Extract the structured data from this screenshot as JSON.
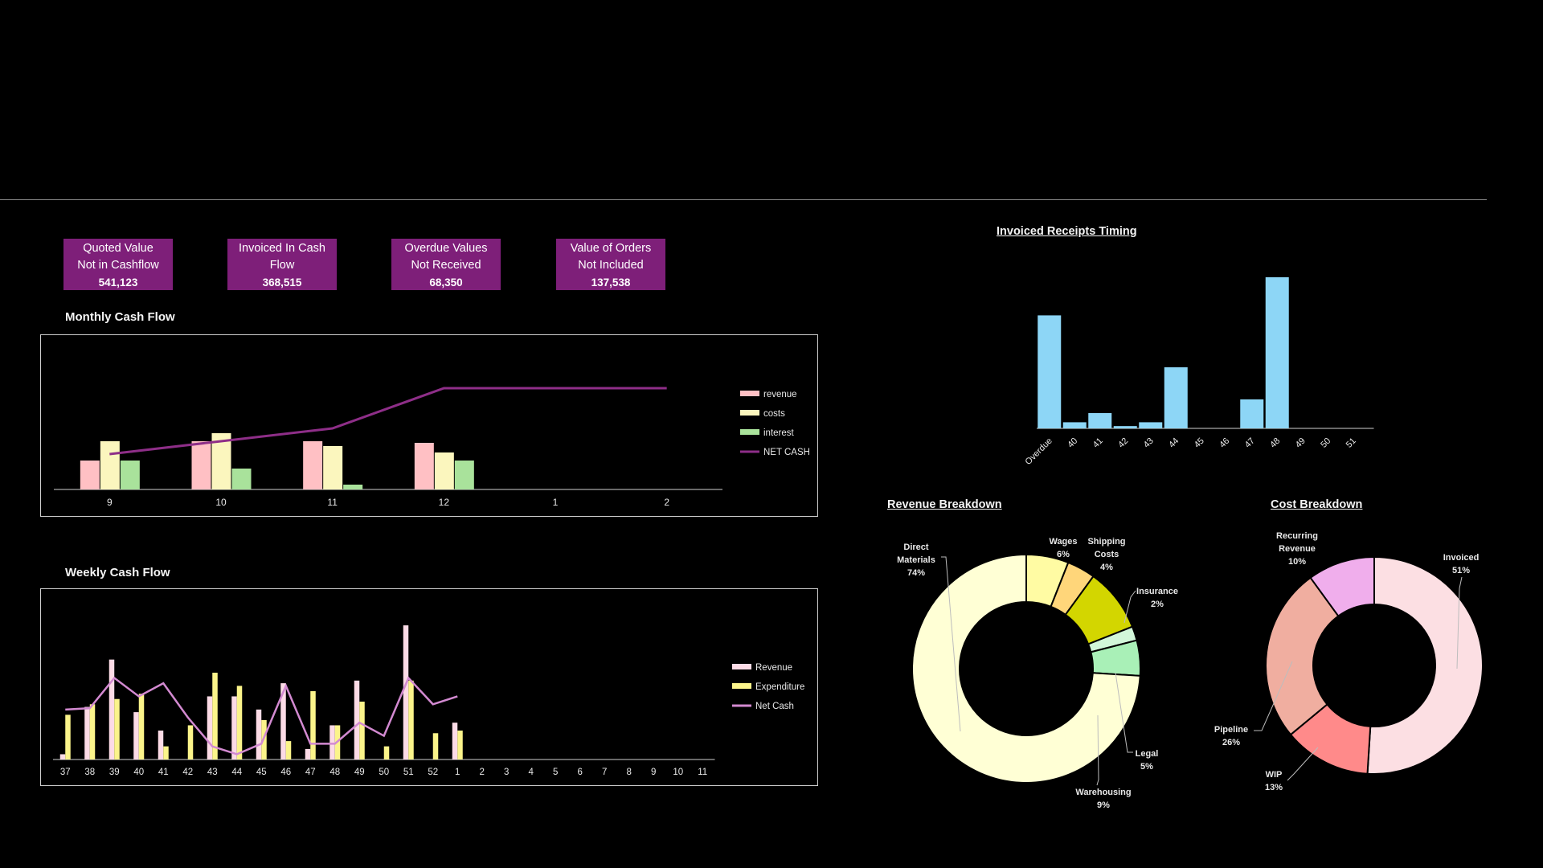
{
  "kpis": [
    {
      "line1": "Quoted Value",
      "line2": "Not in Cashflow",
      "value": "541,123"
    },
    {
      "line1": "Invoiced In Cash",
      "line2": "Flow",
      "value": "368,515"
    },
    {
      "line1": "Overdue Values",
      "line2": "Not Received",
      "value": "68,350"
    },
    {
      "line1": "Value of Orders",
      "line2": "Not Included",
      "value": "137,538"
    }
  ],
  "colors": {
    "revenue": "#ffc0c4",
    "costs": "#fbf6be",
    "interest": "#a9e29b",
    "net_cash": "#8e2e88",
    "weekly_revenue": "#fcdbe6",
    "expenditure": "#fbf48a",
    "weekly_net": "#d38ad1",
    "receipts": "#8dd6f6"
  },
  "chart_data": [
    {
      "id": "monthly",
      "type": "bar",
      "title": "Monthly Cash Flow",
      "categories": [
        "9",
        "10",
        "11",
        "12",
        "1",
        "2"
      ],
      "series": [
        {
          "name": "revenue",
          "kind": "bar",
          "values": [
            18,
            30,
            30,
            29,
            0,
            0
          ]
        },
        {
          "name": "costs",
          "kind": "bar",
          "values": [
            30,
            35,
            27,
            23,
            0,
            0
          ]
        },
        {
          "name": "interest",
          "kind": "bar",
          "values": [
            18,
            13,
            3,
            18,
            0,
            0
          ]
        },
        {
          "name": "NET CASH",
          "kind": "line",
          "values": [
            22,
            30,
            38,
            63,
            63,
            63
          ]
        }
      ],
      "ylim": [
        0,
        80
      ],
      "legend": "right"
    },
    {
      "id": "weekly",
      "type": "bar",
      "title": "Weekly Cash Flow",
      "categories": [
        "37",
        "38",
        "39",
        "40",
        "41",
        "42",
        "43",
        "44",
        "45",
        "46",
        "47",
        "48",
        "49",
        "50",
        "51",
        "52",
        "1",
        "2",
        "3",
        "4",
        "5",
        "6",
        "7",
        "8",
        "9",
        "10",
        "11"
      ],
      "series": [
        {
          "name": "Revenue",
          "kind": "bar",
          "values": [
            2,
            20,
            38,
            18,
            11,
            0,
            24,
            24,
            19,
            29,
            4,
            13,
            30,
            0,
            51,
            0,
            14,
            null,
            null,
            null,
            null,
            null,
            null,
            null,
            null,
            null,
            null
          ]
        },
        {
          "name": "Expenditure",
          "kind": "bar",
          "values": [
            17,
            21,
            23,
            25,
            5,
            13,
            33,
            28,
            15,
            7,
            26,
            13,
            22,
            5,
            30,
            10,
            11,
            null,
            null,
            null,
            null,
            null,
            null,
            null,
            null,
            null,
            null
          ]
        },
        {
          "name": "Net Cash",
          "kind": "line",
          "values": [
            19,
            19.5,
            31,
            24,
            29,
            16,
            5,
            2,
            6,
            28,
            6,
            6,
            14,
            9,
            31,
            21,
            24,
            null,
            null,
            null,
            null,
            null,
            null,
            null,
            null,
            null,
            null
          ]
        }
      ],
      "ylim": [
        0,
        55
      ],
      "legend": "right"
    },
    {
      "id": "receipts",
      "type": "bar",
      "title": "Invoiced Receipts Timing",
      "categories": [
        "Overdue",
        "40",
        "41",
        "42",
        "43",
        "44",
        "45",
        "46",
        "47",
        "48",
        "49",
        "50",
        "51"
      ],
      "values": [
        74,
        4,
        10,
        1.5,
        4,
        40,
        0,
        0,
        19,
        99,
        0,
        0,
        0
      ],
      "ylim": [
        0,
        100
      ]
    },
    {
      "id": "revenue_breakdown",
      "type": "pie",
      "title": "Revenue Breakdown",
      "slices": [
        {
          "label": "Wages",
          "value": 6,
          "pct": "6%",
          "color": "#fffba3"
        },
        {
          "label": "Shipping Costs",
          "value": 4,
          "pct": "4%",
          "color": "#ffd67a"
        },
        {
          "label": "Warehousing",
          "value": 9,
          "pct": "9%",
          "color": "#d3d600"
        },
        {
          "label": "Insurance",
          "value": 2,
          "pct": "2%",
          "color": "#d2f7d9"
        },
        {
          "label": "Legal",
          "value": 5,
          "pct": "5%",
          "color": "#a9f0b7"
        },
        {
          "label": "Direct Materials",
          "value": 74,
          "pct": "74%",
          "color": "#ffffd5"
        }
      ]
    },
    {
      "id": "cost_breakdown",
      "type": "pie",
      "title": "Cost Breakdown",
      "slices": [
        {
          "label": "Invoiced",
          "value": 51,
          "pct": "51%",
          "color": "#fcdfe3"
        },
        {
          "label": "WIP",
          "value": 13,
          "pct": "13%",
          "color": "#ff8a8a"
        },
        {
          "label": "Pipeline",
          "value": 26,
          "pct": "26%",
          "color": "#f0aea0"
        },
        {
          "label": "Recurring Revenue",
          "value": 10,
          "pct": "10%",
          "color": "#f0aeec"
        }
      ]
    }
  ]
}
